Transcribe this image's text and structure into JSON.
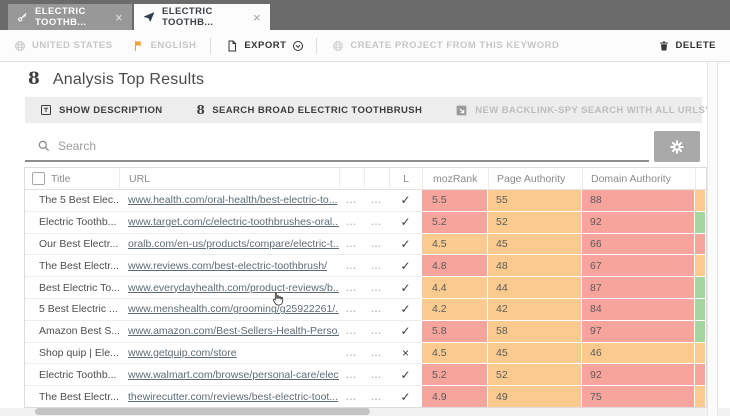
{
  "window": {
    "tabs": [
      {
        "label": "ELECTRIC TOOTHB...",
        "icon": "key-icon",
        "active": false
      },
      {
        "label": "ELECTRIC TOOTHB...",
        "icon": "paper-plane-icon",
        "active": true
      }
    ]
  },
  "toolbar": {
    "country": "UNITED STATES",
    "language": "ENGLISH",
    "export": "EXPORT",
    "create_project": "CREATE PROJECT FROM THIS KEYWORD",
    "delete": "DELETE"
  },
  "page": {
    "title": "Analysis Top Results"
  },
  "actions": {
    "show_description": "SHOW DESCRIPTION",
    "search_broad": "SEARCH BROAD ELECTRIC TOOTHBRUSH",
    "backlink_spy": "NEW BACKLINK-SPY SEARCH WITH ALL URLS'S"
  },
  "search": {
    "placeholder": "Search"
  },
  "icons": {
    "google_glyph": "8",
    "close_glyph": "×",
    "dots_glyph": "...",
    "check_glyph": "✓",
    "cross_glyph": "×"
  },
  "colors": {
    "red": "#f7a49d",
    "orange": "#fbca8e",
    "green": "#a5d6a0",
    "flag": "#f0a22e"
  },
  "table": {
    "columns": {
      "title": "Title",
      "url": "URL",
      "menu1": "",
      "menu2": "",
      "link": "L",
      "mozrank": "mozRank",
      "page_authority": "Page Authority",
      "domain_authority": "Domain Authority"
    },
    "rows": [
      {
        "title": "The 5 Best Elec...",
        "url": "www.health.com/oral-health/best-electric-to...",
        "linked": true,
        "mozrank": "5.5",
        "mozrank_level": "red",
        "page_authority": "55",
        "page_authority_level": "orange",
        "domain_authority": "88",
        "domain_authority_level": "red",
        "next_level": "orange"
      },
      {
        "title": "Electric Toothb...",
        "url": "www.target.com/c/electric-toothbrushes-oral...",
        "linked": true,
        "mozrank": "5.2",
        "mozrank_level": "red",
        "page_authority": "52",
        "page_authority_level": "orange",
        "domain_authority": "92",
        "domain_authority_level": "red",
        "next_level": "green"
      },
      {
        "title": "Our Best Electr...",
        "url": "oralb.com/en-us/products/compare/electric-t...",
        "linked": true,
        "mozrank": "4.5",
        "mozrank_level": "orange",
        "page_authority": "45",
        "page_authority_level": "orange",
        "domain_authority": "66",
        "domain_authority_level": "red",
        "next_level": "red"
      },
      {
        "title": "The Best Electr...",
        "url": "www.reviews.com/best-electric-toothbrush/",
        "linked": true,
        "mozrank": "4.8",
        "mozrank_level": "red",
        "page_authority": "48",
        "page_authority_level": "orange",
        "domain_authority": "67",
        "domain_authority_level": "red",
        "next_level": "orange"
      },
      {
        "title": "Best Electric To...",
        "url": "www.everydayhealth.com/product-reviews/b...",
        "linked": true,
        "mozrank": "4.4",
        "mozrank_level": "orange",
        "page_authority": "44",
        "page_authority_level": "orange",
        "domain_authority": "87",
        "domain_authority_level": "red",
        "next_level": "green"
      },
      {
        "title": "5 Best Electric ...",
        "url": "www.menshealth.com/grooming/g25922261/...",
        "linked": true,
        "mozrank": "4.2",
        "mozrank_level": "orange",
        "page_authority": "42",
        "page_authority_level": "orange",
        "domain_authority": "84",
        "domain_authority_level": "red",
        "next_level": "green"
      },
      {
        "title": "Amazon Best S...",
        "url": "www.amazon.com/Best-Sellers-Health-Perso...",
        "linked": true,
        "mozrank": "5.8",
        "mozrank_level": "red",
        "page_authority": "58",
        "page_authority_level": "orange",
        "domain_authority": "97",
        "domain_authority_level": "red",
        "next_level": "green"
      },
      {
        "title": "Shop quip | Ele...",
        "url": "www.getquip.com/store",
        "linked": false,
        "mozrank": "4.5",
        "mozrank_level": "orange",
        "page_authority": "45",
        "page_authority_level": "orange",
        "domain_authority": "46",
        "domain_authority_level": "orange",
        "next_level": "orange"
      },
      {
        "title": "Electric Toothb...",
        "url": "www.walmart.com/browse/personal-care/elec...",
        "linked": true,
        "mozrank": "5.2",
        "mozrank_level": "red",
        "page_authority": "52",
        "page_authority_level": "orange",
        "domain_authority": "92",
        "domain_authority_level": "red",
        "next_level": "red"
      },
      {
        "title": "The Best Electr...",
        "url": "thewirecutter.com/reviews/best-electric-toot...",
        "linked": true,
        "mozrank": "4.9",
        "mozrank_level": "red",
        "page_authority": "49",
        "page_authority_level": "orange",
        "domain_authority": "75",
        "domain_authority_level": "red",
        "next_level": "orange"
      }
    ]
  }
}
